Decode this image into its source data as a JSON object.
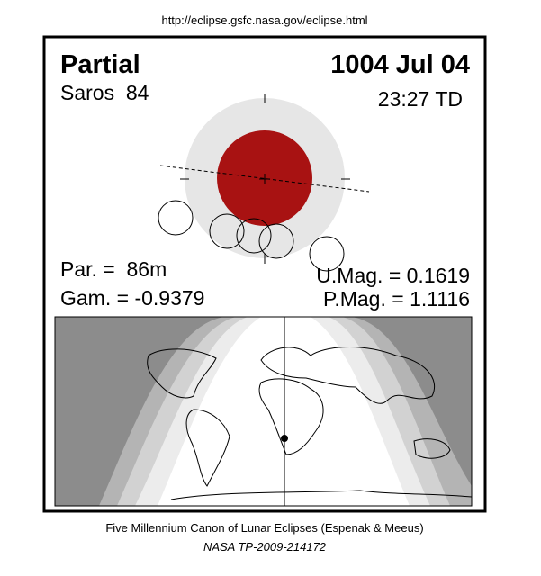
{
  "url": "http://eclipse.gsfc.nasa.gov/eclipse.html",
  "header": {
    "type": "Partial",
    "date": "1004 Jul 04",
    "saros": "Saros  84",
    "time": "23:27 TD"
  },
  "parameters": {
    "par": "Par. =  86m",
    "gam": "Gam. = -0.9379",
    "umag": "U.Mag. = 0.1619",
    "pmag": "P.Mag. = 1.1116"
  },
  "footer": {
    "line1": "Five Millennium Canon of Lunar Eclipses (Espenak & Meeus)",
    "line2": "NASA TP-2009-214172"
  }
}
